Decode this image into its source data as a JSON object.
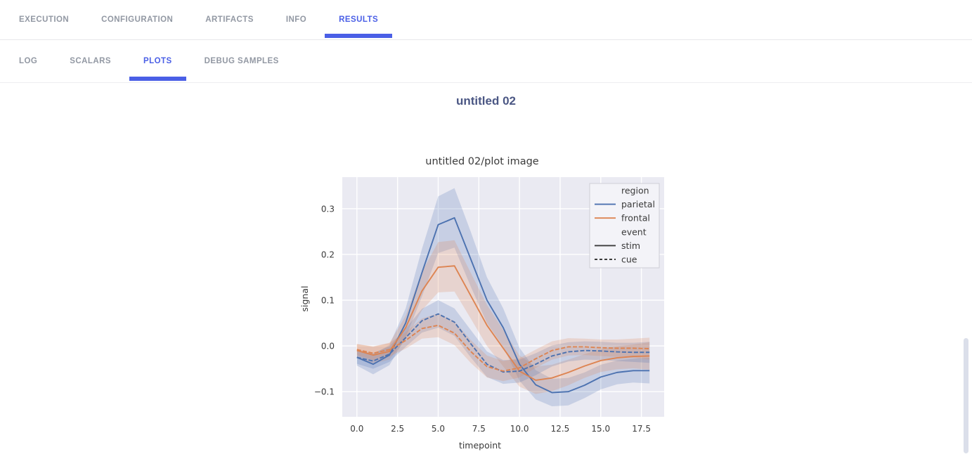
{
  "colors": {
    "tab": "#9298a3",
    "active_tab": "#4a5fe6",
    "heading": "#4b5784",
    "scrollbar": "#dbdfea"
  },
  "primary_nav": {
    "tabs": [
      {
        "label": "EXECUTION",
        "active": false
      },
      {
        "label": "CONFIGURATION",
        "active": false
      },
      {
        "label": "ARTIFACTS",
        "active": false
      },
      {
        "label": "INFO",
        "active": false
      },
      {
        "label": "RESULTS",
        "active": true
      }
    ]
  },
  "secondary_nav": {
    "tabs": [
      {
        "label": "LOG",
        "active": false
      },
      {
        "label": "SCALARS",
        "active": false
      },
      {
        "label": "PLOTS",
        "active": true
      },
      {
        "label": "DEBUG SAMPLES",
        "active": false
      }
    ]
  },
  "page": {
    "title": "untitled 02"
  },
  "chart_data": {
    "type": "line",
    "title": "untitled 02/plot image",
    "xlabel": "timepoint",
    "ylabel": "signal",
    "background": "#eaeaf2",
    "grid": true,
    "band_alpha": 0.22,
    "xlim": [
      -0.9,
      18.9
    ],
    "ylim": [
      -0.155,
      0.369
    ],
    "xticks": [
      {
        "v": 0,
        "label": "0.0"
      },
      {
        "v": 2.5,
        "label": "2.5"
      },
      {
        "v": 5,
        "label": "5.0"
      },
      {
        "v": 7.5,
        "label": "7.5"
      },
      {
        "v": 10,
        "label": "10.0"
      },
      {
        "v": 12.5,
        "label": "12.5"
      },
      {
        "v": 15,
        "label": "15.0"
      },
      {
        "v": 17.5,
        "label": "17.5"
      }
    ],
    "yticks": [
      {
        "v": 0.3,
        "label": "0.3"
      },
      {
        "v": 0.2,
        "label": "0.2"
      },
      {
        "v": 0.1,
        "label": "0.1"
      },
      {
        "v": 0.0,
        "label": "0.0"
      },
      {
        "v": -0.1,
        "label": "−0.1"
      }
    ],
    "x": [
      0,
      1,
      2,
      3,
      4,
      5,
      6,
      7,
      8,
      9,
      10,
      11,
      12,
      13,
      14,
      15,
      16,
      17,
      18
    ],
    "series": [
      {
        "name": "parietal-stim",
        "region": "parietal",
        "event": "stim",
        "color": "#4c72b0",
        "dash": false,
        "values": [
          -0.025,
          -0.04,
          -0.02,
          0.05,
          0.16,
          0.265,
          0.28,
          0.19,
          0.1,
          0.04,
          -0.04,
          -0.085,
          -0.102,
          -0.1,
          -0.086,
          -0.068,
          -0.058,
          -0.054,
          -0.054
        ],
        "ci": [
          0.018,
          0.022,
          0.022,
          0.032,
          0.052,
          0.062,
          0.065,
          0.06,
          0.05,
          0.042,
          0.036,
          0.032,
          0.03,
          0.03,
          0.028,
          0.027,
          0.026,
          0.026,
          0.028
        ]
      },
      {
        "name": "frontal-stim",
        "region": "frontal",
        "event": "stim",
        "color": "#dd8452",
        "dash": false,
        "values": [
          -0.01,
          -0.02,
          -0.012,
          0.04,
          0.12,
          0.172,
          0.175,
          0.11,
          0.045,
          -0.005,
          -0.055,
          -0.075,
          -0.07,
          -0.058,
          -0.044,
          -0.032,
          -0.026,
          -0.023,
          -0.022
        ],
        "ci": [
          0.014,
          0.018,
          0.018,
          0.026,
          0.042,
          0.055,
          0.056,
          0.05,
          0.045,
          0.04,
          0.034,
          0.03,
          0.029,
          0.028,
          0.026,
          0.025,
          0.025,
          0.026,
          0.03
        ]
      },
      {
        "name": "parietal-cue",
        "region": "parietal",
        "event": "cue",
        "color": "#4c72b0",
        "dash": true,
        "values": [
          -0.025,
          -0.033,
          -0.018,
          0.018,
          0.055,
          0.07,
          0.052,
          0.005,
          -0.04,
          -0.057,
          -0.055,
          -0.04,
          -0.022,
          -0.013,
          -0.01,
          -0.011,
          -0.013,
          -0.014,
          -0.014
        ],
        "ci": [
          0.014,
          0.017,
          0.017,
          0.02,
          0.026,
          0.03,
          0.03,
          0.03,
          0.028,
          0.026,
          0.025,
          0.024,
          0.023,
          0.021,
          0.02,
          0.02,
          0.02,
          0.021,
          0.023
        ]
      },
      {
        "name": "frontal-cue",
        "region": "frontal",
        "event": "cue",
        "color": "#dd8452",
        "dash": true,
        "values": [
          -0.008,
          -0.016,
          -0.008,
          0.012,
          0.038,
          0.045,
          0.028,
          -0.012,
          -0.045,
          -0.055,
          -0.048,
          -0.028,
          -0.01,
          -0.002,
          -0.002,
          -0.004,
          -0.005,
          -0.005,
          -0.006
        ],
        "ci": [
          0.012,
          0.015,
          0.015,
          0.018,
          0.022,
          0.026,
          0.026,
          0.025,
          0.024,
          0.022,
          0.021,
          0.02,
          0.02,
          0.019,
          0.018,
          0.018,
          0.019,
          0.021,
          0.024
        ]
      }
    ],
    "legend": {
      "entries": [
        {
          "type": "title",
          "label": "region"
        },
        {
          "type": "line",
          "label": "parietal",
          "color": "#4c72b0",
          "style": "solid"
        },
        {
          "type": "line",
          "label": "frontal",
          "color": "#dd8452",
          "style": "solid"
        },
        {
          "type": "title",
          "label": "event"
        },
        {
          "type": "line",
          "label": "stim",
          "color": "#3b3b3b",
          "style": "solid"
        },
        {
          "type": "line",
          "label": "cue",
          "color": "#3b3b3b",
          "style": "dashed"
        }
      ]
    }
  }
}
